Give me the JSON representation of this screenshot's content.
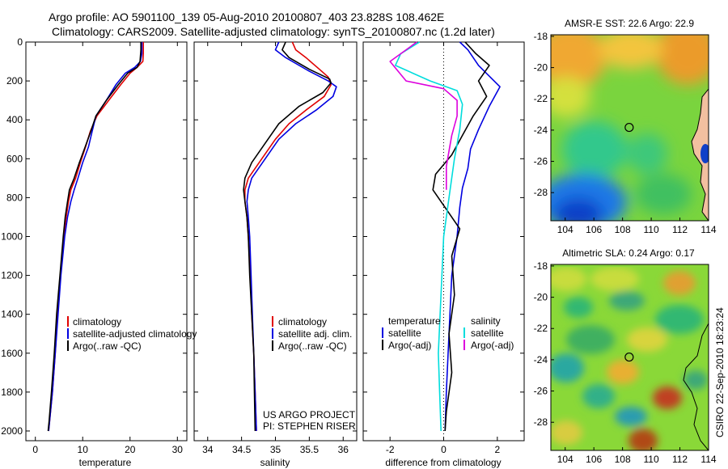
{
  "header": {
    "line1": "Argo profile: AO 5901100_139 05-Aug-2010 20100807_403 23.828S 108.462E",
    "line2": "Climatology: CARS2009. Satellite-adjusted climatology: synTS_20100807.nc (1.2d later)"
  },
  "colors": {
    "climatology": "#e00000",
    "satellite": "#0000e0",
    "argo": "#000000",
    "sat_diff": "#00dddd",
    "argo_diff": "#dd00dd"
  },
  "panels": {
    "temperature": {
      "xlabel": "temperature",
      "xticks": [
        "0",
        "10",
        "20",
        "30"
      ],
      "legend": [
        "climatology",
        "satellite-adjusted climatology",
        "Argo(..raw -QC)"
      ]
    },
    "salinity": {
      "xlabel": "salinity",
      "xticks": [
        "34",
        "34.5",
        "35",
        "35.5",
        "36"
      ],
      "legend": [
        "climatology",
        "satellite adj. clim.",
        "Argo(..raw -QC)"
      ],
      "note1": "US ARGO PROJECT",
      "note2": "PI: STEPHEN RISER"
    },
    "difference": {
      "xlabel": "difference from climatology",
      "xticks": [
        "-2",
        "0",
        "2"
      ],
      "legend_head_t": "temperature",
      "legend_head_s": "salinity",
      "legend_t": [
        "satellite",
        "Argo(-adj)"
      ],
      "legend_s": [
        "satellite",
        "Argo(-adj)"
      ]
    },
    "depth_ticks": [
      "0",
      "200",
      "400",
      "600",
      "800",
      "1000",
      "1200",
      "1400",
      "1600",
      "1800",
      "2000"
    ]
  },
  "maps": {
    "sst_title": "AMSR-E SST: 22.6 Argo: 22.9",
    "sla_title": "Altimetric SLA: 0.24 Argo: 0.17",
    "yticks": [
      "-18",
      "-20",
      "-22",
      "-24",
      "-26",
      "-28"
    ],
    "xticks": [
      "104",
      "106",
      "108",
      "110",
      "112",
      "114"
    ],
    "float_lon": 108.462,
    "float_lat": -23.828
  },
  "credit": "CSIRO 22-Sep-2010 18:23:24",
  "chart_data": [
    {
      "type": "line",
      "title": "",
      "xlabel": "temperature",
      "ylabel": "",
      "xlim": [
        -2,
        32
      ],
      "ylim": [
        2050,
        0
      ],
      "series": [
        {
          "name": "climatology",
          "points": [
            [
              22.8,
              0
            ],
            [
              22.8,
              60
            ],
            [
              22.7,
              100
            ],
            [
              21.5,
              130
            ],
            [
              20,
              160
            ],
            [
              18,
              220
            ],
            [
              15.5,
              300
            ],
            [
              13,
              380
            ],
            [
              11.6,
              460
            ],
            [
              10.6,
              540
            ],
            [
              9.5,
              620
            ],
            [
              8.5,
              700
            ],
            [
              7.5,
              760
            ],
            [
              7,
              820
            ],
            [
              6.5,
              900
            ],
            [
              6,
              1000
            ],
            [
              5.3,
              1200
            ],
            [
              4.7,
              1400
            ],
            [
              4.2,
              1600
            ],
            [
              3.6,
              1800
            ],
            [
              3,
              1950
            ],
            [
              2.8,
              2000
            ]
          ]
        },
        {
          "name": "satellite-adjusted climatology",
          "points": [
            [
              22.5,
              0
            ],
            [
              22.5,
              60
            ],
            [
              22.2,
              100
            ],
            [
              21,
              130
            ],
            [
              19,
              160
            ],
            [
              17,
              220
            ],
            [
              15,
              300
            ],
            [
              12.8,
              380
            ],
            [
              12,
              460
            ],
            [
              11.2,
              540
            ],
            [
              10,
              620
            ],
            [
              9,
              700
            ],
            [
              8.2,
              760
            ],
            [
              7.5,
              820
            ],
            [
              6.8,
              900
            ],
            [
              6.2,
              1000
            ],
            [
              5.4,
              1200
            ],
            [
              4.8,
              1400
            ],
            [
              4.2,
              1600
            ],
            [
              3.6,
              1800
            ],
            [
              3,
              1950
            ],
            [
              2.8,
              2000
            ]
          ]
        },
        {
          "name": "Argo(..raw -QC)",
          "points": [
            [
              22.3,
              0
            ],
            [
              22.3,
              40
            ],
            [
              22.1,
              100
            ],
            [
              21.5,
              130
            ],
            [
              19.5,
              160
            ],
            [
              17.5,
              220
            ],
            [
              15,
              300
            ],
            [
              12.8,
              380
            ],
            [
              11.7,
              460
            ],
            [
              10.5,
              540
            ],
            [
              9.3,
              620
            ],
            [
              8.2,
              700
            ],
            [
              7.2,
              760
            ],
            [
              6.8,
              820
            ],
            [
              6.3,
              900
            ],
            [
              5.9,
              1000
            ],
            [
              5.2,
              1200
            ],
            [
              4.5,
              1400
            ],
            [
              4,
              1600
            ],
            [
              3.4,
              1800
            ],
            [
              2.9,
              1950
            ],
            [
              2.7,
              2000
            ]
          ]
        }
      ]
    },
    {
      "type": "line",
      "title": "",
      "xlabel": "salinity",
      "ylabel": "",
      "xlim": [
        33.8,
        36.2
      ],
      "ylim": [
        2050,
        0
      ],
      "series": [
        {
          "name": "climatology",
          "points": [
            [
              35.25,
              0
            ],
            [
              35.3,
              40
            ],
            [
              35.45,
              80
            ],
            [
              35.65,
              140
            ],
            [
              35.78,
              180
            ],
            [
              35.82,
              220
            ],
            [
              35.72,
              280
            ],
            [
              35.45,
              350
            ],
            [
              35.2,
              420
            ],
            [
              35.0,
              500
            ],
            [
              34.8,
              600
            ],
            [
              34.6,
              700
            ],
            [
              34.55,
              760
            ],
            [
              34.55,
              820
            ],
            [
              34.58,
              900
            ],
            [
              34.6,
              1000
            ],
            [
              34.63,
              1200
            ],
            [
              34.65,
              1400
            ],
            [
              34.68,
              1600
            ],
            [
              34.7,
              1800
            ],
            [
              34.72,
              2000
            ]
          ]
        },
        {
          "name": "satellite adj. clim.",
          "points": [
            [
              35.05,
              0
            ],
            [
              35.0,
              40
            ],
            [
              35.15,
              80
            ],
            [
              35.5,
              150
            ],
            [
              35.78,
              200
            ],
            [
              35.9,
              230
            ],
            [
              35.85,
              280
            ],
            [
              35.6,
              350
            ],
            [
              35.3,
              420
            ],
            [
              35.05,
              500
            ],
            [
              34.85,
              600
            ],
            [
              34.65,
              700
            ],
            [
              34.6,
              760
            ],
            [
              34.58,
              820
            ],
            [
              34.6,
              900
            ],
            [
              34.62,
              1000
            ],
            [
              34.64,
              1200
            ],
            [
              34.66,
              1400
            ],
            [
              34.68,
              1600
            ],
            [
              34.7,
              1800
            ],
            [
              34.72,
              2000
            ]
          ]
        },
        {
          "name": "Argo(..raw -QC)",
          "points": [
            [
              35.15,
              0
            ],
            [
              35.1,
              40
            ],
            [
              35.2,
              80
            ],
            [
              35.5,
              140
            ],
            [
              35.8,
              190
            ],
            [
              35.82,
              210
            ],
            [
              35.7,
              260
            ],
            [
              35.35,
              330
            ],
            [
              35.05,
              420
            ],
            [
              34.85,
              520
            ],
            [
              34.65,
              620
            ],
            [
              34.55,
              700
            ],
            [
              34.53,
              760
            ],
            [
              34.55,
              820
            ],
            [
              34.58,
              900
            ],
            [
              34.6,
              1000
            ],
            [
              34.62,
              1200
            ],
            [
              34.65,
              1400
            ],
            [
              34.68,
              1600
            ],
            [
              34.69,
              1800
            ],
            [
              34.7,
              2000
            ]
          ]
        }
      ]
    },
    {
      "type": "line",
      "title": "",
      "xlabel": "difference from climatology",
      "ylabel": "",
      "xlim": [
        -3,
        3
      ],
      "ylim": [
        2050,
        0
      ],
      "series": [
        {
          "name": "satellite",
          "points": [
            [
              0.6,
              0
            ],
            [
              0.9,
              40
            ],
            [
              1.3,
              120
            ],
            [
              2.1,
              230
            ],
            [
              1.7,
              330
            ],
            [
              1.3,
              450
            ],
            [
              1.0,
              550
            ],
            [
              0.9,
              650
            ],
            [
              0.7,
              750
            ],
            [
              0.6,
              850
            ],
            [
              0.5,
              1000
            ],
            [
              0.3,
              1200
            ],
            [
              0.2,
              1500
            ],
            [
              0.1,
              1800
            ],
            [
              0.05,
              2000
            ]
          ]
        },
        {
          "name": "Argo(-adj)",
          "points": [
            [
              0.8,
              0
            ],
            [
              1.2,
              60
            ],
            [
              1.7,
              120
            ],
            [
              1.3,
              200
            ],
            [
              1.6,
              280
            ],
            [
              1.1,
              380
            ],
            [
              0.7,
              480
            ],
            [
              0.3,
              580
            ],
            [
              -0.3,
              680
            ],
            [
              -0.4,
              760
            ],
            [
              0.2,
              880
            ],
            [
              0.6,
              960
            ],
            [
              0.3,
              1100
            ],
            [
              0.4,
              1300
            ],
            [
              0.2,
              1500
            ],
            [
              0.3,
              1700
            ],
            [
              0.1,
              1900
            ],
            [
              0.05,
              2000
            ]
          ]
        },
        {
          "name": "satellite",
          "points": [
            [
              -0.9,
              0
            ],
            [
              -1.6,
              60
            ],
            [
              -1.8,
              120
            ],
            [
              -0.5,
              200
            ],
            [
              0.5,
              250
            ],
            [
              0.7,
              320
            ],
            [
              0.6,
              450
            ],
            [
              0.4,
              600
            ],
            [
              0.2,
              800
            ],
            [
              0.0,
              1000
            ],
            [
              -0.1,
              1300
            ],
            [
              -0.2,
              1600
            ],
            [
              -0.15,
              1800
            ],
            [
              -0.1,
              2000
            ]
          ]
        },
        {
          "name": "Argo(-adj)",
          "points": [
            [
              -1.0,
              0
            ],
            [
              -2.0,
              100
            ],
            [
              -1.4,
              200
            ],
            [
              0.0,
              240
            ],
            [
              0.5,
              300
            ],
            [
              0.5,
              380
            ],
            [
              0.3,
              480
            ],
            [
              0.2,
              560
            ],
            [
              0.1,
              640
            ],
            [
              0.1,
              760
            ]
          ]
        }
      ]
    }
  ]
}
